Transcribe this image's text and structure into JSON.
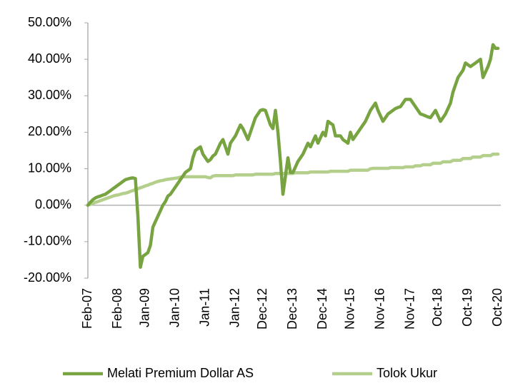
{
  "chart_data": {
    "type": "line",
    "categories": [
      "Feb-07",
      null,
      null,
      null,
      null,
      null,
      null,
      null,
      null,
      null,
      null,
      null,
      "Feb-08",
      null,
      null,
      null,
      null,
      null,
      null,
      null,
      null,
      null,
      null,
      "Jan-09",
      null,
      null,
      null,
      null,
      null,
      null,
      null,
      null,
      null,
      null,
      null,
      "Jan-10",
      null,
      null,
      null,
      null,
      null,
      null,
      null,
      null,
      null,
      null,
      null,
      "Jan-11",
      null,
      null,
      null,
      null,
      null,
      null,
      null,
      null,
      null,
      null,
      null,
      "Jan-12",
      null,
      null,
      null,
      null,
      null,
      null,
      null,
      null,
      null,
      null,
      "Dec-12",
      null,
      null,
      null,
      null,
      null,
      null,
      null,
      null,
      null,
      null,
      null,
      "Dec-13",
      null,
      null,
      null,
      null,
      null,
      null,
      null,
      null,
      null,
      null,
      null,
      "Dec-14",
      null,
      null,
      null,
      null,
      null,
      null,
      null,
      null,
      null,
      null,
      "Nov-15",
      null,
      null,
      null,
      null,
      null,
      null,
      null,
      null,
      null,
      null,
      null,
      "Nov-16",
      null,
      null,
      null,
      null,
      null,
      null,
      null,
      null,
      null,
      null,
      null,
      "Nov-17",
      null,
      null,
      null,
      null,
      null,
      null,
      null,
      null,
      null,
      null,
      "Oct-18",
      null,
      null,
      null,
      null,
      null,
      null,
      null,
      null,
      null,
      null,
      null,
      "Oct-19",
      null,
      null,
      null,
      null,
      null,
      null,
      null,
      null,
      null,
      null,
      null,
      "Oct-20"
    ],
    "series": [
      {
        "name": "Melati Premium Dollar AS",
        "color": "#77a340",
        "values": [
          0.0,
          0.8,
          1.5,
          2.0,
          2.3,
          2.5,
          2.8,
          3.0,
          3.5,
          4.0,
          4.5,
          5.0,
          5.5,
          6.0,
          6.5,
          7.0,
          7.2,
          7.4,
          7.5,
          7.3,
          -3.0,
          -17.0,
          -14.0,
          -13.5,
          -13.0,
          -11.0,
          -6.0,
          -4.5,
          -3.0,
          -1.5,
          0.0,
          1.0,
          2.5,
          3.0,
          4.0,
          5.0,
          6.0,
          7.0,
          8.0,
          9.0,
          9.5,
          10.0,
          13.0,
          15.0,
          15.5,
          16.0,
          14.0,
          13.0,
          12.0,
          12.5,
          13.5,
          14.0,
          15.5,
          17.0,
          18.0,
          16.0,
          14.0,
          17.0,
          18.0,
          19.0,
          20.5,
          22.0,
          21.0,
          19.5,
          18.0,
          20.0,
          22.0,
          24.0,
          25.0,
          26.0,
          26.2,
          26.0,
          24.0,
          22.0,
          21.0,
          26.0,
          20.0,
          12.0,
          3.0,
          8.0,
          13.0,
          9.0,
          9.0,
          10.5,
          12.0,
          13.0,
          14.0,
          15.5,
          17.0,
          16.0,
          17.5,
          19.0,
          17.0,
          18.5,
          20.0,
          19.0,
          23.0,
          22.5,
          22.0,
          19.0,
          19.0,
          19.0,
          18.0,
          17.5,
          17.0,
          20.0,
          18.0,
          19.0,
          20.0,
          21.0,
          22.0,
          23.0,
          24.5,
          26.0,
          27.0,
          28.0,
          26.0,
          24.5,
          23.0,
          24.0,
          25.0,
          25.5,
          26.0,
          26.5,
          26.8,
          27.0,
          28.0,
          29.0,
          29.0,
          29.0,
          28.0,
          27.0,
          26.0,
          25.0,
          24.8,
          24.5,
          24.2,
          24.0,
          25.0,
          26.0,
          24.5,
          23.0,
          24.0,
          25.0,
          26.5,
          28.0,
          31.0,
          33.0,
          35.0,
          36.0,
          37.0,
          39.0,
          38.5,
          38.0,
          38.5,
          39.0,
          39.5,
          40.0,
          35.0,
          36.5,
          38.0,
          40.0,
          44.0,
          43.0,
          43.0
        ]
      },
      {
        "name": "Tolok Ukur",
        "color": "#b4cf8c",
        "values": [
          0,
          0.25,
          0.5,
          0.75,
          1,
          1.25,
          1.5,
          1.75,
          2,
          2.25,
          2.5,
          2.7,
          2.8,
          3.0,
          3.2,
          3.3,
          3.5,
          3.8,
          4.0,
          4.3,
          4.5,
          4.8,
          5.0,
          5.3,
          5.5,
          5.8,
          6.0,
          6.3,
          6.5,
          6.7,
          6.8,
          7.0,
          7.1,
          7.2,
          7.3,
          7.4,
          7.5,
          7.7,
          7.8,
          7.8,
          7.8,
          7.8,
          7.8,
          7.8,
          7.8,
          7.8,
          7.8,
          7.8,
          7.6,
          7.5,
          8.0,
          8.1,
          8.1,
          8.1,
          8.1,
          8.1,
          8.1,
          8.1,
          8.1,
          8.3,
          8.3,
          8.3,
          8.3,
          8.3,
          8.3,
          8.3,
          8.3,
          8.5,
          8.5,
          8.5,
          8.5,
          8.5,
          8.5,
          8.5,
          8.5,
          8.7,
          8.7,
          8.7,
          8.7,
          8.7,
          8.7,
          8.7,
          8.7,
          8.9,
          8.9,
          8.9,
          8.9,
          8.9,
          8.9,
          9.1,
          9.1,
          9.1,
          9.1,
          9.1,
          9.1,
          9.1,
          9.1,
          9.3,
          9.3,
          9.3,
          9.3,
          9.3,
          9.3,
          9.3,
          9.3,
          9.6,
          9.6,
          9.6,
          9.6,
          9.6,
          9.6,
          9.6,
          9.6,
          10.0,
          10.1,
          10.1,
          10.1,
          10.1,
          10.1,
          10.1,
          10.1,
          10.3,
          10.3,
          10.3,
          10.3,
          10.3,
          10.3,
          10.5,
          10.5,
          10.5,
          10.5,
          10.8,
          10.8,
          10.8,
          11.1,
          11.1,
          11.1,
          11.1,
          11.5,
          11.5,
          11.5,
          11.5,
          11.9,
          11.9,
          11.9,
          11.9,
          12.3,
          12.3,
          12.3,
          12.3,
          12.8,
          12.8,
          12.8,
          12.8,
          13.2,
          13.2,
          13.2,
          13.2,
          13.6,
          13.6,
          13.6,
          13.6,
          14.0,
          14.0,
          14.0
        ]
      }
    ],
    "ylim": [
      -20,
      50
    ],
    "yticks": [
      {
        "value": -20,
        "label": "-20.00%"
      },
      {
        "value": -10,
        "label": "-10.00%"
      },
      {
        "value": 0,
        "label": "0.00%"
      },
      {
        "value": 10,
        "label": "10.00%"
      },
      {
        "value": 20,
        "label": "20.00%"
      },
      {
        "value": 30,
        "label": "30.00%"
      },
      {
        "value": 40,
        "label": "40.00%"
      },
      {
        "value": 50,
        "label": "50.00%"
      }
    ],
    "grid": false,
    "legend": "bottom"
  }
}
